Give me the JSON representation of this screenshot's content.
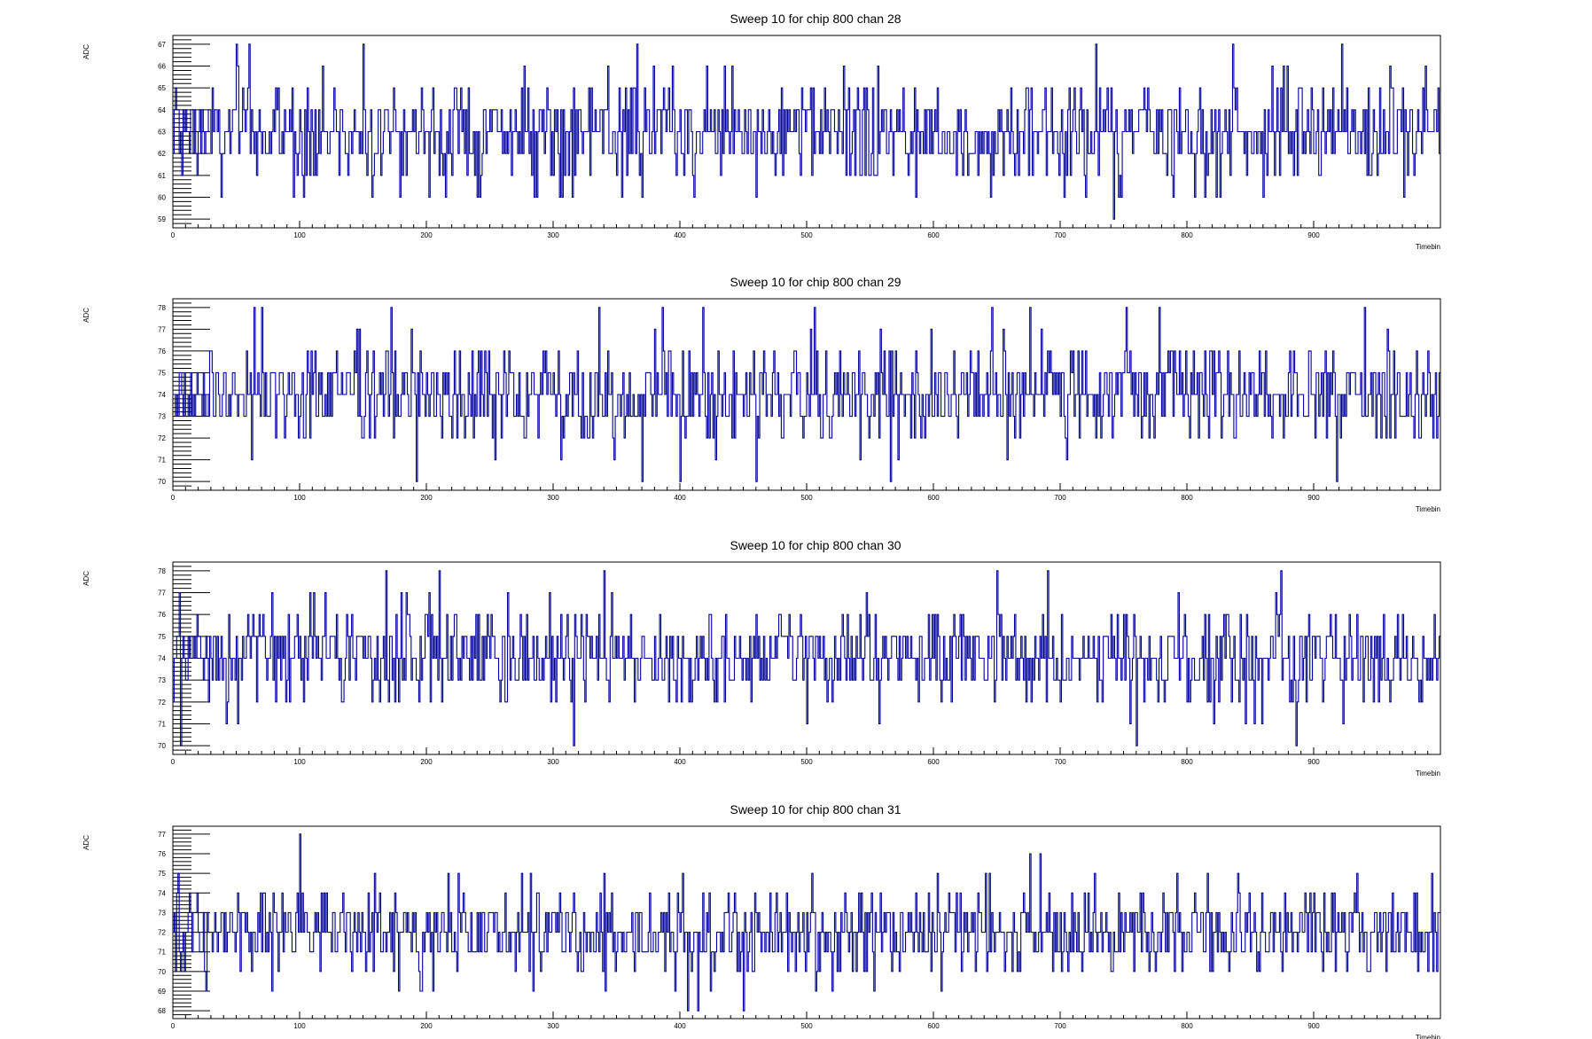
{
  "chart_data": [
    {
      "type": "line",
      "title": "Sweep 10 for chip 800 chan 28",
      "xlabel": "Timebin",
      "ylabel": "ADC",
      "xlim": [
        0,
        1000
      ],
      "ylim": [
        58.6,
        67.4
      ],
      "xticks": [
        0,
        100,
        200,
        300,
        400,
        500,
        600,
        700,
        800,
        900
      ],
      "yticks": [
        59,
        60,
        61,
        62,
        63,
        64,
        65,
        66,
        67
      ],
      "baseline": 63,
      "spread": 1.15,
      "spikes": [
        {
          "x": 38,
          "y": 60
        },
        {
          "x": 50,
          "y": 67
        },
        {
          "x": 60,
          "y": 67
        },
        {
          "x": 150,
          "y": 67
        },
        {
          "x": 215,
          "y": 60
        },
        {
          "x": 240,
          "y": 60
        },
        {
          "x": 354,
          "y": 60
        },
        {
          "x": 366,
          "y": 67
        },
        {
          "x": 460,
          "y": 60
        },
        {
          "x": 586,
          "y": 60
        },
        {
          "x": 645,
          "y": 60
        },
        {
          "x": 720,
          "y": 60
        },
        {
          "x": 728,
          "y": 67
        },
        {
          "x": 742,
          "y": 59
        },
        {
          "x": 806,
          "y": 60
        },
        {
          "x": 836,
          "y": 67
        },
        {
          "x": 860,
          "y": 60
        },
        {
          "x": 922,
          "y": 67
        }
      ],
      "color": "#000099",
      "grid": false
    },
    {
      "type": "line",
      "title": "Sweep 10 for chip 800 chan 29",
      "xlabel": "Timebin",
      "ylabel": "ADC",
      "xlim": [
        0,
        1000
      ],
      "ylim": [
        69.6,
        78.4
      ],
      "xticks": [
        0,
        100,
        200,
        300,
        400,
        500,
        600,
        700,
        800,
        900
      ],
      "yticks": [
        70,
        71,
        72,
        73,
        74,
        75,
        76,
        77,
        78
      ],
      "baseline": 74,
      "spread": 1.15,
      "spikes": [
        {
          "x": 64,
          "y": 78
        },
        {
          "x": 70,
          "y": 78
        },
        {
          "x": 172,
          "y": 78
        },
        {
          "x": 192,
          "y": 70
        },
        {
          "x": 336,
          "y": 78
        },
        {
          "x": 370,
          "y": 70
        },
        {
          "x": 386,
          "y": 78
        },
        {
          "x": 400,
          "y": 70
        },
        {
          "x": 418,
          "y": 78
        },
        {
          "x": 460,
          "y": 70
        },
        {
          "x": 506,
          "y": 78
        },
        {
          "x": 566,
          "y": 70
        },
        {
          "x": 646,
          "y": 78
        },
        {
          "x": 676,
          "y": 78
        },
        {
          "x": 752,
          "y": 78
        },
        {
          "x": 778,
          "y": 78
        },
        {
          "x": 918,
          "y": 70
        },
        {
          "x": 940,
          "y": 78
        }
      ],
      "color": "#000099",
      "grid": false
    },
    {
      "type": "line",
      "title": "Sweep 10 for chip 800 chan 30",
      "xlabel": "Timebin",
      "ylabel": "ADC",
      "xlim": [
        0,
        1000
      ],
      "ylim": [
        69.6,
        78.4
      ],
      "xticks": [
        0,
        100,
        200,
        300,
        400,
        500,
        600,
        700,
        800,
        900
      ],
      "yticks": [
        70,
        71,
        72,
        73,
        74,
        75,
        76,
        77,
        78
      ],
      "baseline": 74,
      "spread": 1.15,
      "spikes": [
        {
          "x": 6,
          "y": 70
        },
        {
          "x": 168,
          "y": 78
        },
        {
          "x": 210,
          "y": 78
        },
        {
          "x": 316,
          "y": 70
        },
        {
          "x": 340,
          "y": 78
        },
        {
          "x": 650,
          "y": 78
        },
        {
          "x": 690,
          "y": 78
        },
        {
          "x": 760,
          "y": 70
        },
        {
          "x": 874,
          "y": 78
        },
        {
          "x": 886,
          "y": 70
        }
      ],
      "color": "#000099",
      "grid": false
    },
    {
      "type": "line",
      "title": "Sweep 10 for chip 800 chan 31",
      "xlabel": "Timebin",
      "ylabel": "ADC",
      "xlim": [
        0,
        1000
      ],
      "ylim": [
        67.6,
        77.4
      ],
      "xticks": [
        0,
        100,
        200,
        300,
        400,
        500,
        600,
        700,
        800,
        900
      ],
      "yticks": [
        68,
        69,
        70,
        71,
        72,
        73,
        74,
        75,
        76,
        77
      ],
      "baseline": 72,
      "spread": 1.15,
      "spikes": [
        {
          "x": 78,
          "y": 69
        },
        {
          "x": 100,
          "y": 77
        },
        {
          "x": 196,
          "y": 69
        },
        {
          "x": 406,
          "y": 68
        },
        {
          "x": 414,
          "y": 68
        },
        {
          "x": 450,
          "y": 68
        },
        {
          "x": 606,
          "y": 69
        }
      ],
      "color": "#000099",
      "grid": false
    }
  ]
}
